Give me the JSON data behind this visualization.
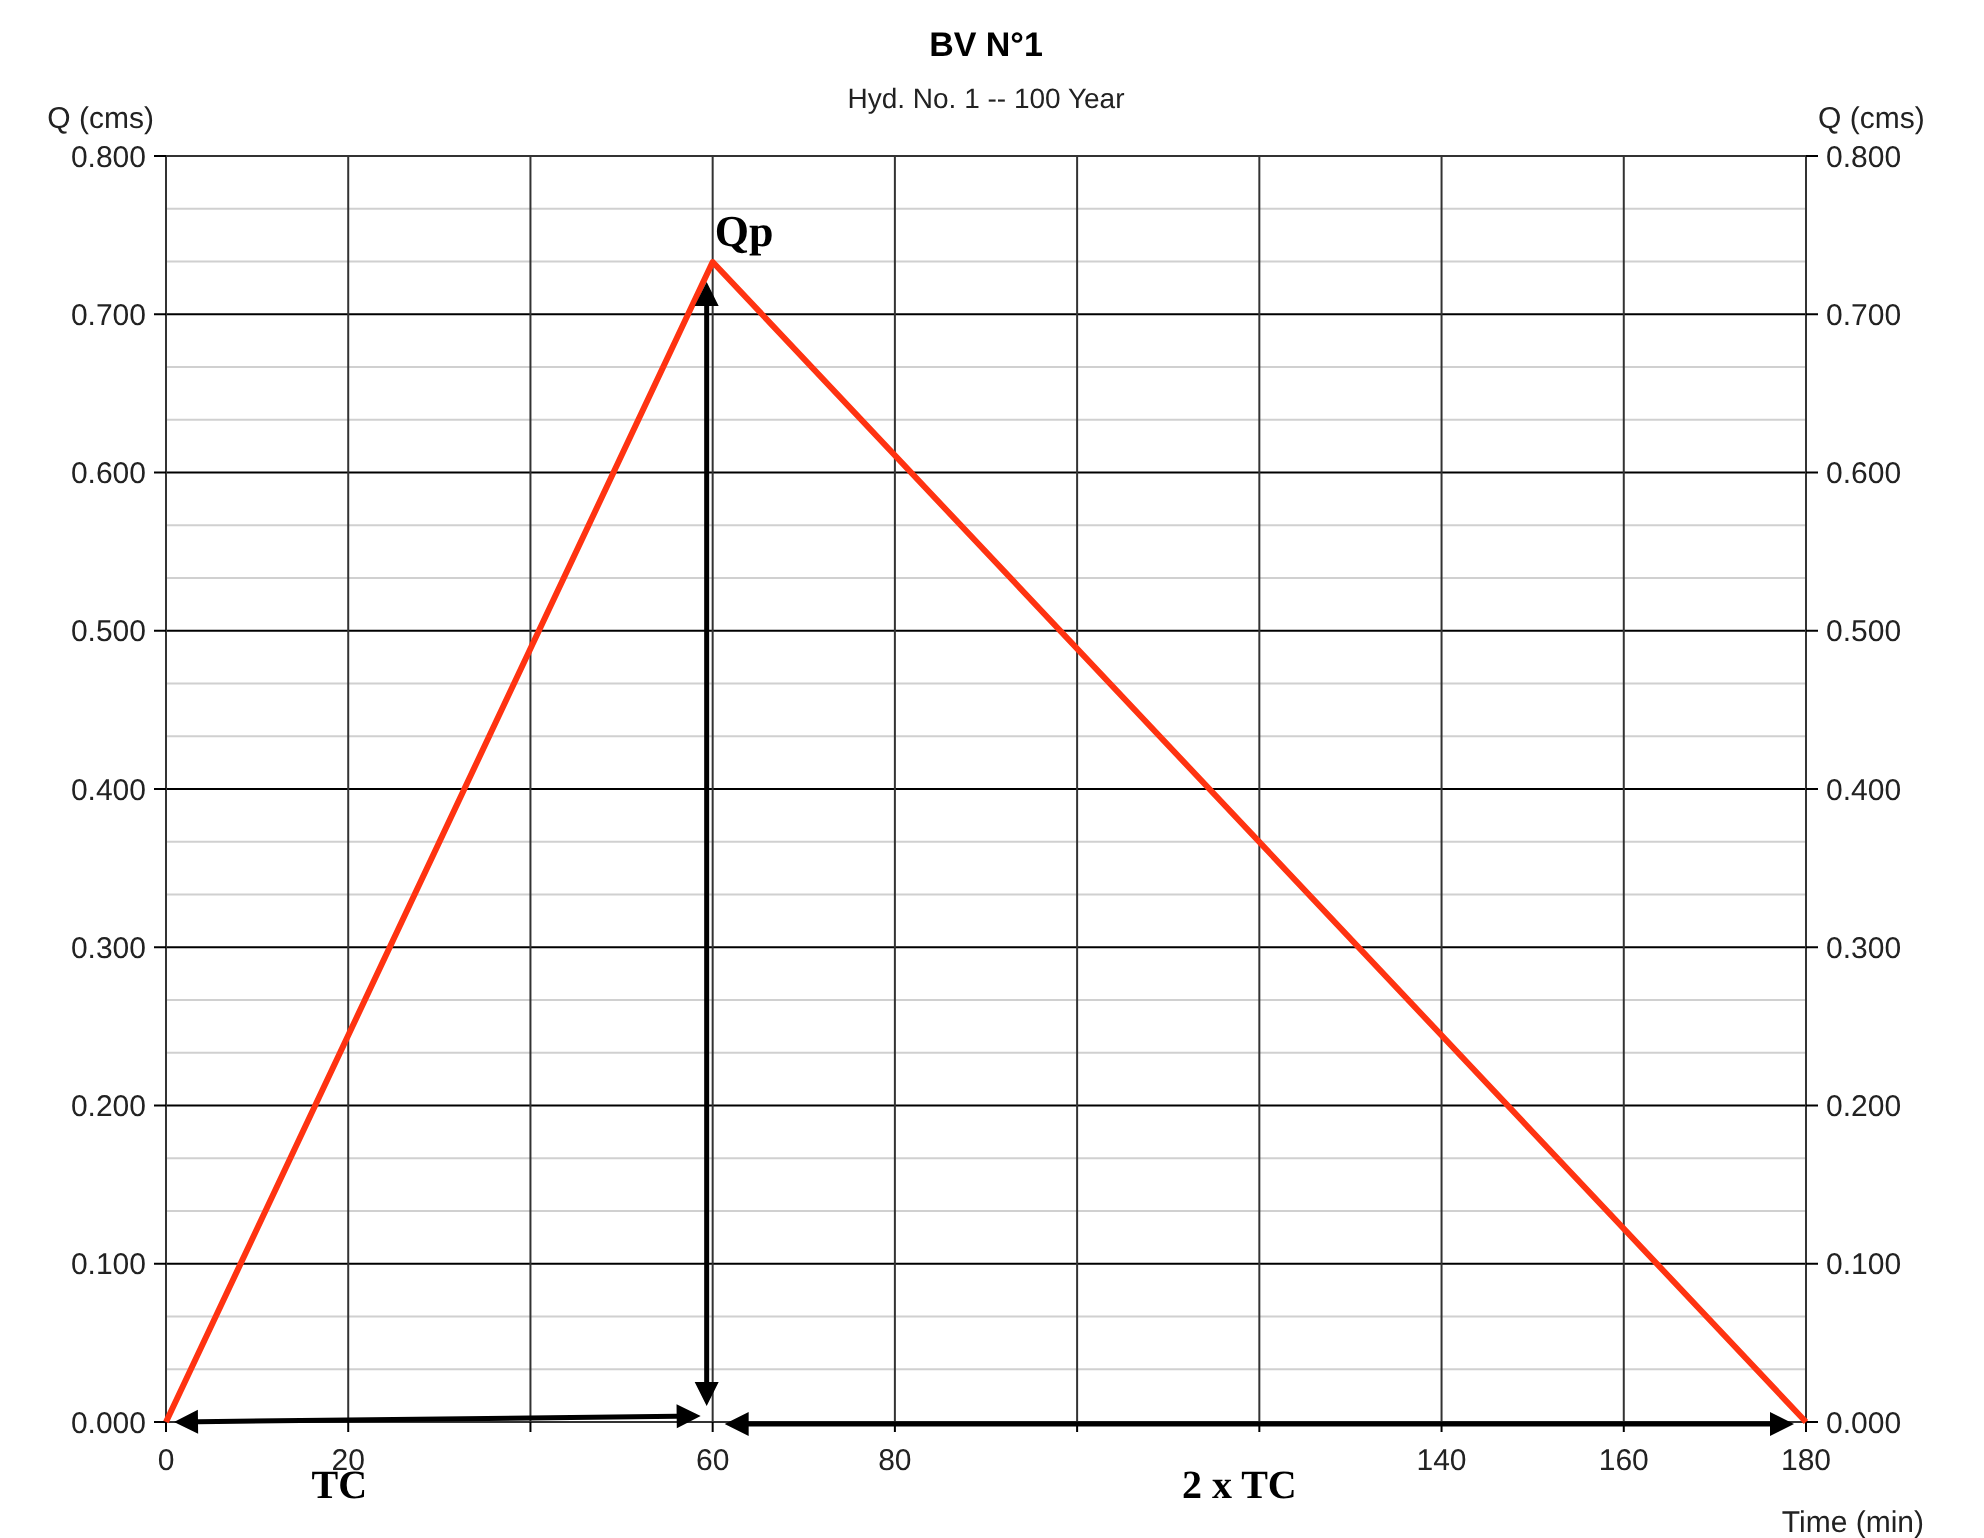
{
  "chart_data": {
    "type": "line",
    "title": "BV N°1",
    "subtitle": "Hyd. No. 1 -- 100 Year",
    "xlabel": "Time (min)",
    "ylabel": "Q (cms)",
    "y2label": "Q (cms)",
    "x": [
      0,
      60,
      180
    ],
    "series": [
      {
        "color": "#ff3311",
        "values": [
          0,
          0.733,
          0
        ]
      }
    ],
    "xlim": [
      0,
      180
    ],
    "xticks": [
      0,
      20,
      {
        "value": 40,
        "label": null
      },
      60,
      80,
      {
        "value": 100,
        "label": null
      },
      {
        "value": 120,
        "label": null
      },
      140,
      160,
      180
    ],
    "ylim": [
      0,
      0.8
    ],
    "yticks": [
      {
        "value": 0,
        "label": "0.000"
      },
      {
        "value": 0.1,
        "label": "0.100"
      },
      {
        "value": 0.2,
        "label": "0.200"
      },
      {
        "value": 0.3,
        "label": "0.300"
      },
      {
        "value": 0.4,
        "label": "0.400"
      },
      {
        "value": 0.5,
        "label": "0.500"
      },
      {
        "value": 0.6,
        "label": "0.600"
      },
      {
        "value": 0.7,
        "label": "0.700"
      },
      {
        "value": 0.8,
        "label": "0.800"
      }
    ],
    "y2lim": [
      0,
      0.8
    ],
    "y2ticks": [
      {
        "value": 0,
        "label": "0.000"
      },
      {
        "value": 0.1,
        "label": "0.100"
      },
      {
        "value": 0.2,
        "label": "0.200"
      },
      {
        "value": 0.3,
        "label": "0.300"
      },
      {
        "value": 0.4,
        "label": "0.400"
      },
      {
        "value": 0.5,
        "label": "0.500"
      },
      {
        "value": 0.6,
        "label": "0.600"
      },
      {
        "value": 0.7,
        "label": "0.700"
      },
      {
        "value": 0.8,
        "label": "0.800"
      }
    ],
    "grid": true,
    "marker": "none",
    "line_style": "solid",
    "annotations": [
      {
        "text": "Qp",
        "x": 60,
        "y": 0.733
      },
      "TC",
      "2 x TC"
    ]
  }
}
